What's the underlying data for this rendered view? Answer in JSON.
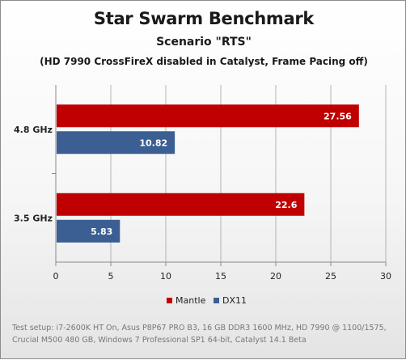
{
  "chart_data": {
    "type": "bar",
    "orientation": "horizontal",
    "title": "Star Swarm Benchmark",
    "subtitle": "Scenario \"RTS\"",
    "subtitle2": "(HD 7990 CrossFireX disabled in Catalyst, Frame Pacing off)",
    "categories": [
      "4.8 GHz",
      "3.5 GHz"
    ],
    "series": [
      {
        "name": "Mantle",
        "values": [
          27.56,
          22.6
        ],
        "color": "#c00000"
      },
      {
        "name": "DX11",
        "values": [
          10.82,
          5.83
        ],
        "color": "#3b5f92"
      }
    ],
    "xlim": [
      0,
      30
    ],
    "xticks": [
      0,
      5,
      10,
      15,
      20,
      25,
      30
    ],
    "grid": true,
    "legend": "bottom",
    "note": "Test setup: i7-2600K HT On, Asus P8P67 PRO B3, 16 GB DDR3 1600 MHz, HD 7990 @ 1100/1575, Crucial M500 480 GB, Windows 7 Professional SP1 64-bit, Catalyst 14.1 Beta"
  }
}
